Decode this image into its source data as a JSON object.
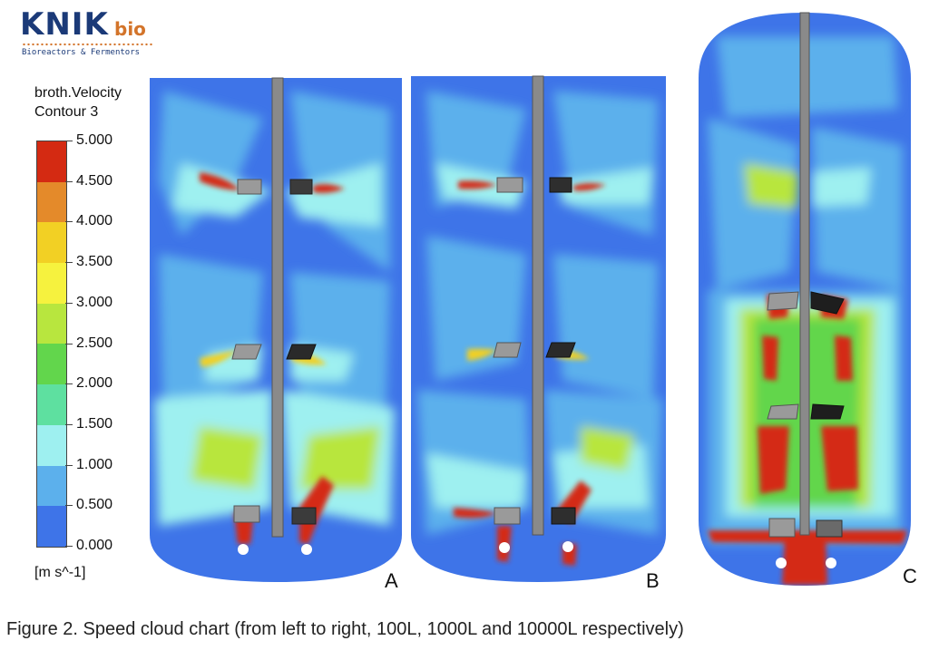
{
  "logo": {
    "brand": "KNIK",
    "suffix": "bio",
    "tagline": "Bioreactors & Fermentors"
  },
  "legend": {
    "title_line1": "broth.Velocity",
    "title_line2": "Contour 3",
    "ticks": [
      "5.000",
      "4.500",
      "4.000",
      "3.500",
      "3.000",
      "2.500",
      "2.000",
      "1.500",
      "1.000",
      "0.500",
      "0.000"
    ],
    "unit": "[m s^-1]",
    "colors": [
      "#d42a12",
      "#e48a2a",
      "#f2d024",
      "#f6f23e",
      "#b8e63e",
      "#62d64c",
      "#5ee0a0",
      "#9ef0f0",
      "#5cb0ec",
      "#3e74e8"
    ]
  },
  "panels": [
    {
      "letter": "A",
      "volume": "100L"
    },
    {
      "letter": "B",
      "volume": "1000L"
    },
    {
      "letter": "C",
      "volume": "10000L"
    }
  ],
  "caption": "Figure 2. Speed cloud chart (from left to right, 100L, 1000L and 10000L respectively)"
}
